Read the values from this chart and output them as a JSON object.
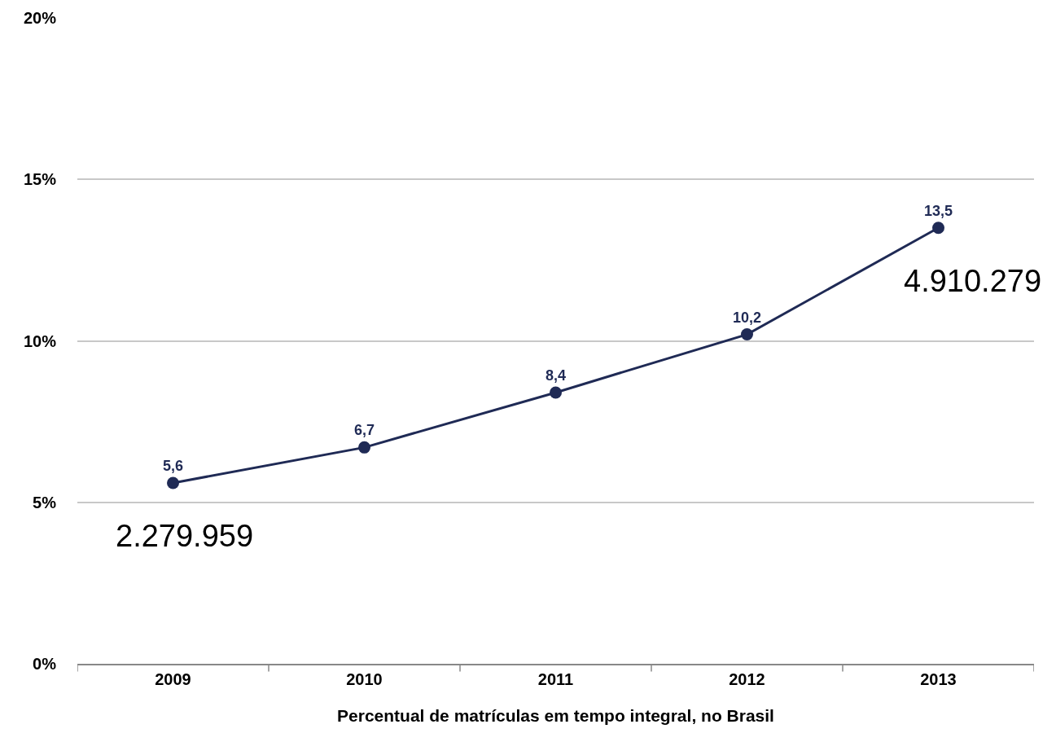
{
  "chart_data": {
    "type": "line",
    "xlabel": "Percentual de matrículas em tempo integral, no Brasil",
    "categories": [
      "2009",
      "2010",
      "2011",
      "2012",
      "2013"
    ],
    "series": [
      {
        "color": "#1f2a55",
        "values": [
          5.6,
          6.7,
          8.4,
          10.2,
          13.5
        ],
        "value_labels": [
          "5,6",
          "6,7",
          "8,4",
          "10,2",
          "13,5"
        ]
      }
    ],
    "ylim": [
      0,
      20
    ],
    "yticks": [
      {
        "value": 0,
        "label": "0%"
      },
      {
        "value": 5,
        "label": "5%"
      },
      {
        "value": 10,
        "label": "10%"
      },
      {
        "value": 15,
        "label": "15%"
      },
      {
        "value": 20,
        "label": "20%"
      }
    ],
    "grid": "y",
    "marker": "circle",
    "line_style": "solid",
    "annotations": [
      "2.279.959",
      "4.910.279"
    ]
  }
}
